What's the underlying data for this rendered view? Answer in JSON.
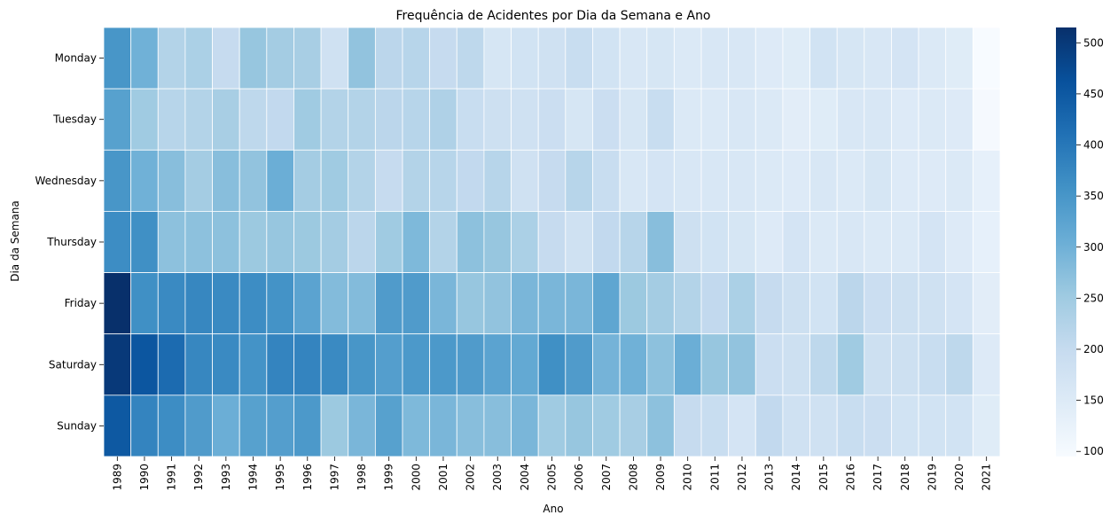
{
  "chart_data": {
    "type": "heatmap",
    "title": "Frequência de Acidentes por Dia da Semana e Ano",
    "xlabel": "Ano",
    "ylabel": "Dia da Semana",
    "colormap": "Blues",
    "colorbar": {
      "range": [
        95,
        515
      ],
      "ticks": [
        100,
        150,
        200,
        250,
        300,
        350,
        400,
        450,
        500
      ]
    },
    "x": [
      "1989",
      "1990",
      "1991",
      "1992",
      "1993",
      "1994",
      "1995",
      "1996",
      "1997",
      "1998",
      "1999",
      "2000",
      "2001",
      "2002",
      "2003",
      "2004",
      "2005",
      "2006",
      "2007",
      "2008",
      "2009",
      "2010",
      "2011",
      "2012",
      "2013",
      "2014",
      "2015",
      "2016",
      "2017",
      "2018",
      "2019",
      "2020",
      "2021"
    ],
    "y": [
      "Monday",
      "Tuesday",
      "Wednesday",
      "Thursday",
      "Friday",
      "Saturday",
      "Sunday"
    ],
    "values": [
      [
        350,
        300,
        225,
        235,
        200,
        260,
        245,
        240,
        180,
        265,
        215,
        220,
        200,
        210,
        165,
        175,
        180,
        195,
        175,
        160,
        165,
        155,
        160,
        160,
        150,
        145,
        175,
        165,
        160,
        170,
        155,
        145,
        95
      ],
      [
        330,
        250,
        220,
        225,
        240,
        210,
        205,
        250,
        225,
        225,
        215,
        220,
        230,
        195,
        185,
        180,
        190,
        165,
        190,
        165,
        195,
        155,
        155,
        160,
        155,
        140,
        145,
        160,
        160,
        150,
        155,
        150,
        100
      ],
      [
        350,
        300,
        275,
        245,
        275,
        265,
        305,
        245,
        250,
        225,
        200,
        225,
        220,
        205,
        220,
        180,
        200,
        220,
        195,
        160,
        170,
        160,
        160,
        160,
        155,
        150,
        160,
        155,
        165,
        150,
        150,
        155,
        130
      ],
      [
        365,
        360,
        270,
        270,
        270,
        255,
        260,
        255,
        245,
        215,
        250,
        285,
        225,
        270,
        260,
        235,
        200,
        180,
        205,
        220,
        275,
        185,
        175,
        165,
        150,
        170,
        155,
        160,
        155,
        155,
        170,
        150,
        130
      ],
      [
        515,
        360,
        370,
        375,
        370,
        365,
        355,
        325,
        280,
        280,
        340,
        340,
        290,
        260,
        265,
        290,
        290,
        290,
        320,
        255,
        245,
        225,
        205,
        235,
        200,
        185,
        175,
        215,
        190,
        185,
        180,
        170,
        140
      ],
      [
        500,
        455,
        420,
        375,
        370,
        355,
        380,
        380,
        370,
        350,
        335,
        345,
        345,
        340,
        325,
        315,
        360,
        340,
        295,
        300,
        270,
        305,
        260,
        265,
        190,
        185,
        210,
        250,
        185,
        185,
        195,
        210,
        150
      ],
      [
        450,
        380,
        365,
        340,
        305,
        330,
        335,
        345,
        255,
        290,
        330,
        285,
        290,
        275,
        275,
        290,
        250,
        260,
        250,
        240,
        270,
        200,
        195,
        170,
        205,
        180,
        180,
        195,
        190,
        175,
        175,
        175,
        145
      ]
    ]
  }
}
